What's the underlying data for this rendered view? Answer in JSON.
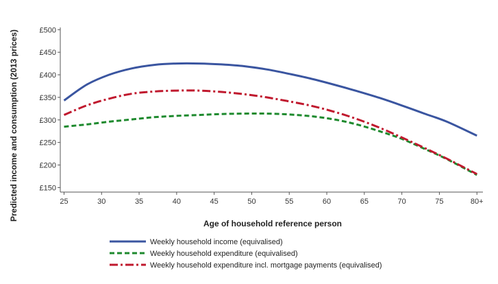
{
  "chart_data": {
    "type": "line",
    "xlabel": "Age of household reference person",
    "ylabel": "Predicted income and consumption (2013 prices)",
    "x_ticks": [
      "25",
      "30",
      "35",
      "40",
      "45",
      "50",
      "55",
      "60",
      "65",
      "70",
      "75",
      "80+"
    ],
    "x_tick_values": [
      25,
      30,
      35,
      40,
      45,
      50,
      55,
      60,
      65,
      70,
      75,
      80
    ],
    "y_ticks": [
      "£150",
      "£200",
      "£250",
      "£300",
      "£350",
      "£400",
      "£450",
      "£500"
    ],
    "y_tick_values": [
      150,
      200,
      250,
      300,
      350,
      400,
      450,
      500
    ],
    "xlim": [
      24.5,
      80.8
    ],
    "ylim": [
      140,
      505
    ],
    "grid": false,
    "legend_position": "bottom",
    "x": [
      25,
      28,
      31,
      34,
      37,
      40,
      43,
      46,
      49,
      52,
      55,
      58,
      61,
      64,
      67,
      70,
      73,
      76,
      80
    ],
    "series": [
      {
        "name": "Weekly household income (equivalised)",
        "color": "#3a55a0",
        "style": "solid",
        "values": [
          343,
          378,
          400,
          414,
          422,
          425,
          425,
          423,
          419,
          412,
          402,
          391,
          378,
          364,
          349,
          332,
          314,
          296,
          265
        ]
      },
      {
        "name": "Weekly household expenditure (equivalised)",
        "color": "#1e8a2e",
        "style": "dashed",
        "values": [
          285,
          290,
          296,
          301,
          306,
          309,
          311,
          313,
          314,
          314,
          312,
          308,
          301,
          290,
          275,
          258,
          236,
          213,
          178
        ]
      },
      {
        "name": "Weekly household expenditure incl. mortgage payments (equivalised)",
        "color": "#c0192e",
        "style": "dashdot",
        "values": [
          311,
          332,
          347,
          358,
          363,
          365,
          365,
          362,
          357,
          350,
          341,
          331,
          318,
          302,
          283,
          261,
          238,
          214,
          180
        ]
      }
    ]
  }
}
